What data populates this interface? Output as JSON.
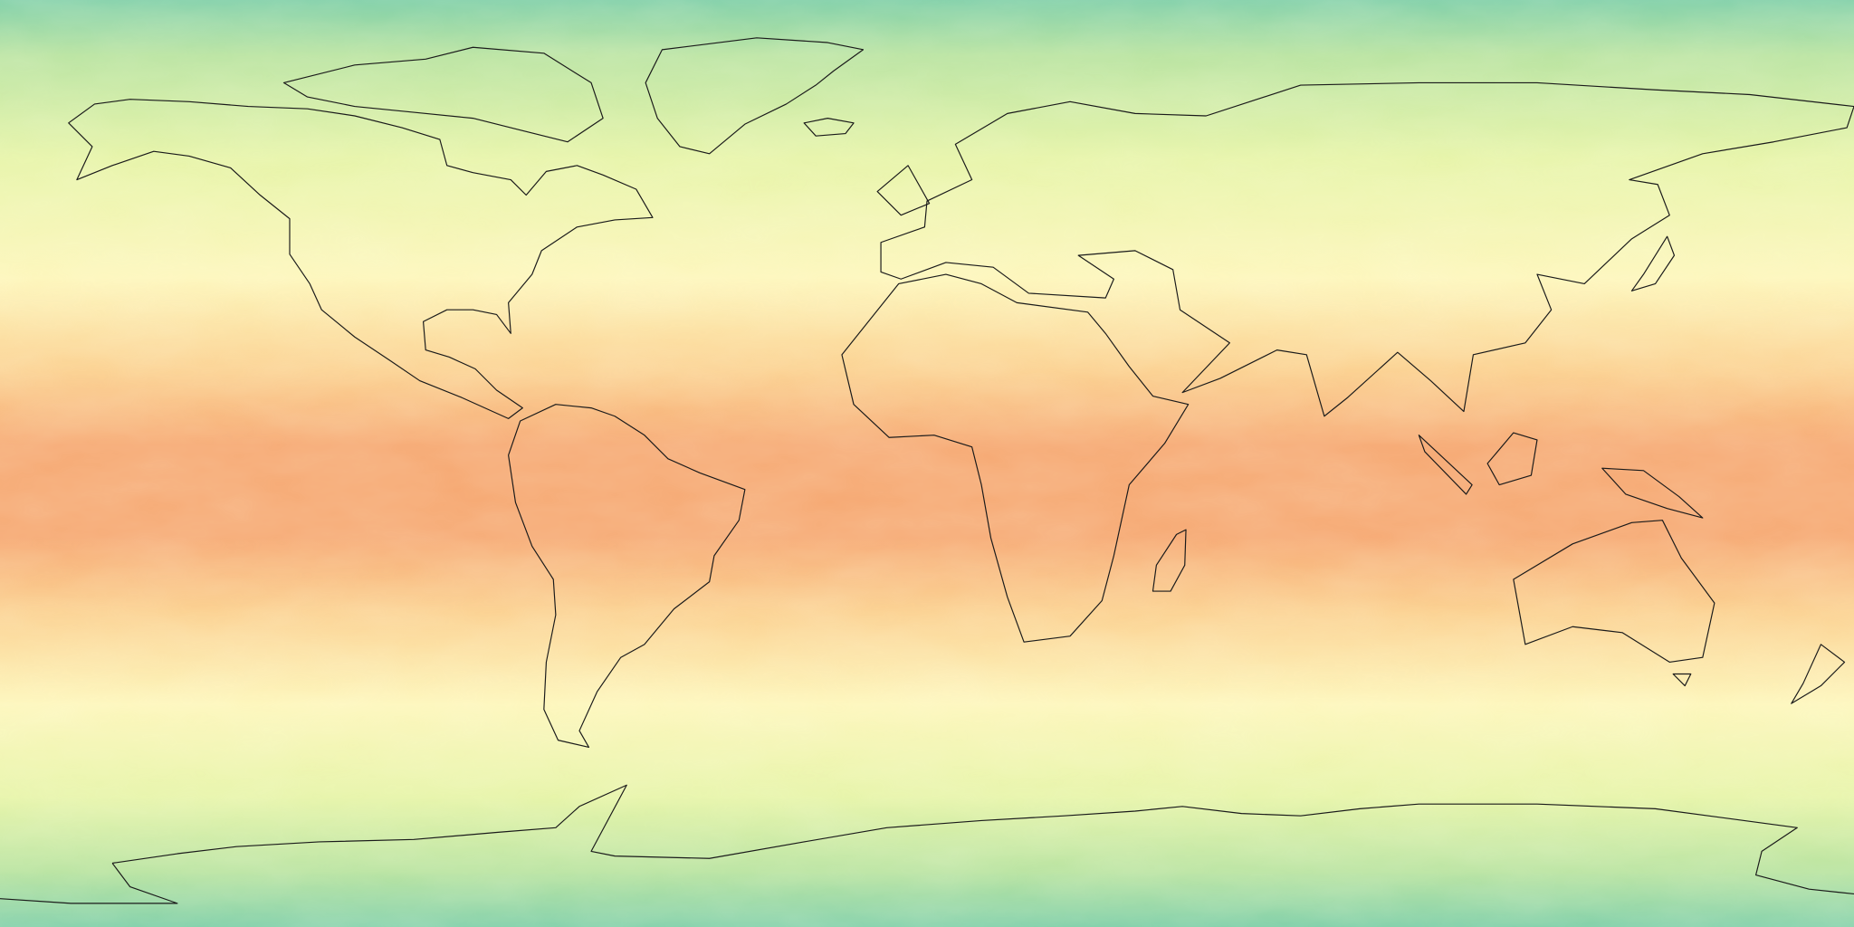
{
  "map": {
    "projection": "equirectangular",
    "lon_range": [
      -180,
      180
    ],
    "lat_range": [
      -90,
      90
    ],
    "coastlines": true,
    "field_colormap": {
      "polar": "#7fcfa8",
      "subpolar": "#b8e3a0",
      "midlatitude": "#e6f4a8",
      "subtropical": "#fdf6bb",
      "tropical": "#fbd08f",
      "equatorial": "#f6a872"
    },
    "coastline_color": "#1a1a1a"
  }
}
